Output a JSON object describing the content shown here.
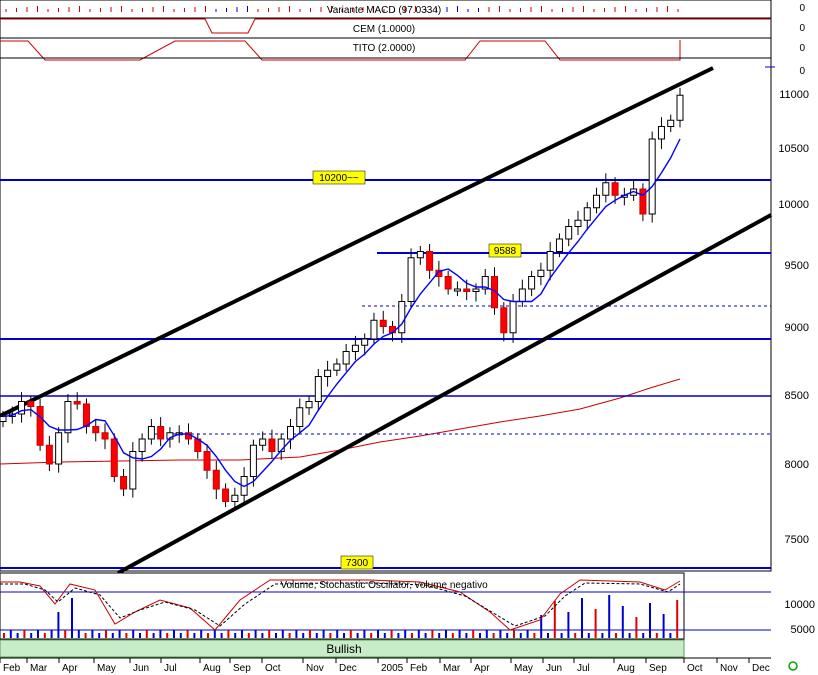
{
  "indicators": {
    "macd": {
      "label": "Variante MACD (97.0334)",
      "value": "0"
    },
    "cem": {
      "label": "CEM (1.0000)",
      "value": "0"
    },
    "tito": {
      "label": "TITO (2.0000)",
      "value": "0"
    }
  },
  "main_scale": {
    "top_value": "0"
  },
  "price_ticks": [
    "11000",
    "10500",
    "10000",
    "9500",
    "9000",
    "8500",
    "8000",
    "7500"
  ],
  "volume_panel": {
    "title": "Volume, Stochastic Oscillator, volume negativo",
    "ticks": [
      "10000",
      "5000"
    ]
  },
  "x_axis": {
    "months": [
      "Feb",
      "Mar",
      "Apr",
      "May",
      "Jun",
      "Jul",
      "Aug",
      "Sep",
      "Oct",
      "Nov",
      "Dec",
      "2005",
      "Feb",
      "Mar",
      "Apr",
      "May",
      "Jun",
      "Jul",
      "Aug",
      "Sep",
      "Oct",
      "Nov",
      "Dec"
    ]
  },
  "status": {
    "label": "Bullish"
  },
  "colors": {
    "up": "#ffffff",
    "down": "#ff0000",
    "level_line": "#0000cc",
    "channel": "#000000",
    "ma_short": "#0000ff",
    "ma_long": "#cc0000",
    "label_fill": "#ffff00",
    "status_fill": "#c8ecc8"
  },
  "chart_data": {
    "type": "candlestick",
    "x_range": [
      "2004-02",
      "2005-12"
    ],
    "ylim": [
      7200,
      11300
    ],
    "horizontal_levels": [
      {
        "label": "10200~~",
        "value": 10200
      },
      {
        "label": "9588",
        "value": 9588
      },
      {
        "label": "",
        "value": 8900
      },
      {
        "label": "",
        "value": 8470
      },
      {
        "label": "7300",
        "value": 7280
      }
    ],
    "dashed_levels": [
      9160,
      8210
    ],
    "channel": [
      {
        "start": {
          "date": "2004-02-01",
          "value": 8200
        },
        "end": {
          "date": "2005-10-01",
          "value": 11260
        }
      },
      {
        "start": {
          "date": "2004-05-15",
          "value": 7200
        },
        "end": {
          "date": "2005-12-31",
          "value": 9930
        }
      }
    ],
    "weekly_closes": [
      8280,
      8300,
      8400,
      8360,
      8050,
      7900,
      8150,
      8400,
      8380,
      8200,
      8150,
      8100,
      7800,
      7700,
      8000,
      8100,
      8200,
      8100,
      8150,
      8150,
      8100,
      8000,
      7850,
      7700,
      7600,
      7650,
      7800,
      8050,
      8100,
      8000,
      8100,
      8200,
      8350,
      8400,
      8600,
      8650,
      8700,
      8800,
      8850,
      8900,
      9050,
      9000,
      8950,
      9200,
      9550,
      9600,
      9450,
      9400,
      9300,
      9300,
      9280,
      9300,
      9400,
      9150,
      8950,
      9200,
      9300,
      9400,
      9450,
      9600,
      9700,
      9800,
      9850,
      9950,
      10050,
      10150,
      10050,
      10050,
      10100,
      9900,
      10500,
      10600,
      10650,
      10850
    ]
  }
}
